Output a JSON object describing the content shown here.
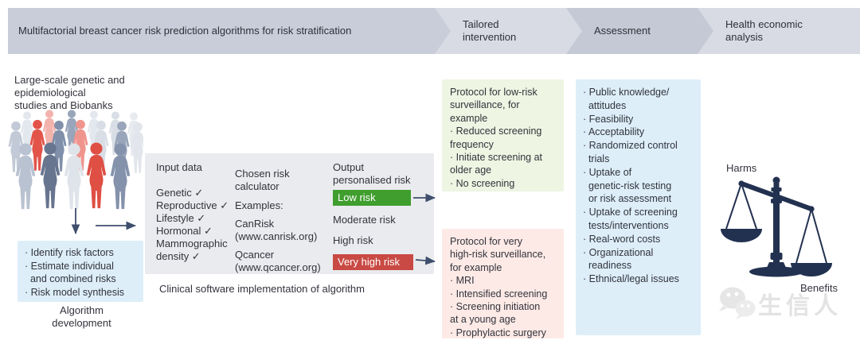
{
  "banner": {
    "steps": [
      {
        "label": "Multifactorial breast cancer risk prediction algorithms for risk stratification"
      },
      {
        "label": "Tailored intervention"
      },
      {
        "label": "Assessment"
      },
      {
        "label": "Health economic analysis"
      }
    ]
  },
  "biobank": {
    "title_lines": [
      "Large-scale genetic and",
      "epidemiological",
      "studies and Biobanks"
    ]
  },
  "algorithm": {
    "box_lines": [
      "· Identify risk factors",
      "· Estimate individual",
      "  and combined risks",
      "· Risk model synthesis"
    ],
    "caption_lines": [
      "Algorithm",
      "development"
    ]
  },
  "software": {
    "input": {
      "header_lines": [
        "Input data"
      ],
      "lines": [
        "Genetic ✓",
        "Reproductive ✓",
        "Lifestyle ✓",
        "Hormonal ✓",
        "Mammographic",
        "density ✓"
      ]
    },
    "calculator": {
      "header_lines": [
        "Chosen risk",
        "calculator"
      ],
      "lines": [
        "Examples:",
        "",
        "CanRisk",
        "(www.canrisk.org)",
        "",
        "Qcancer",
        "(www.qcancer.org)"
      ]
    },
    "output": {
      "header_lines": [
        "Output",
        "personalised risk"
      ],
      "levels": [
        {
          "label": "Low risk",
          "style": "low"
        },
        {
          "label": "Moderate risk",
          "style": "plain"
        },
        {
          "label": "High risk",
          "style": "plain"
        },
        {
          "label": "Very high risk",
          "style": "very_high"
        }
      ]
    },
    "caption": "Clinical software implementation of algorithm"
  },
  "protocols": {
    "low": {
      "lines": [
        "Protocol for low-risk",
        "surveillance, for",
        "example",
        "· Reduced screening",
        "frequency",
        "· Initiate screening at",
        "older age",
        "· No screening"
      ]
    },
    "very_high": {
      "lines": [
        "Protocol for very",
        "high-risk surveillance,",
        "for example",
        "· MRI",
        "· Intensified screening",
        "· Screening initiation",
        "at a young age",
        "· Prophylactic surgery"
      ]
    }
  },
  "assessment": {
    "lines": [
      "· Public knowledge/",
      "  attitudes",
      "· Feasibility",
      "· Acceptability",
      "· Randomized control",
      "  trials",
      "· Uptake of",
      "  genetic-risk testing",
      "  or risk assessment",
      "· Uptake of screening",
      "  tests/interventions",
      "· Real-word costs",
      "· Organizational",
      "  readiness",
      "· Ethnical/legal issues"
    ]
  },
  "scale": {
    "harms": "Harms",
    "benefits": "Benefits"
  },
  "watermark": {
    "text": "生信人",
    "icon": "wechat-icon"
  },
  "colors": {
    "low_risk_green": "#3f9e2e",
    "very_high_risk_red": "#c94a44",
    "info_blue_box": "#ddeef9",
    "grey_box": "#e9ebee",
    "green_box": "#eef5e2",
    "pink_box": "#fdeae6",
    "banner_grey_dark": "#c9cdd9",
    "banner_grey_light": "#d8dbe4",
    "arrow_navy": "#3e4e6c",
    "scale_navy": "#223150",
    "crowd_red": "#e2544a",
    "crowd_pink": "#f2a39c",
    "crowd_blue_grey": "#66748f",
    "crowd_light_grey": "#c7cedb"
  }
}
